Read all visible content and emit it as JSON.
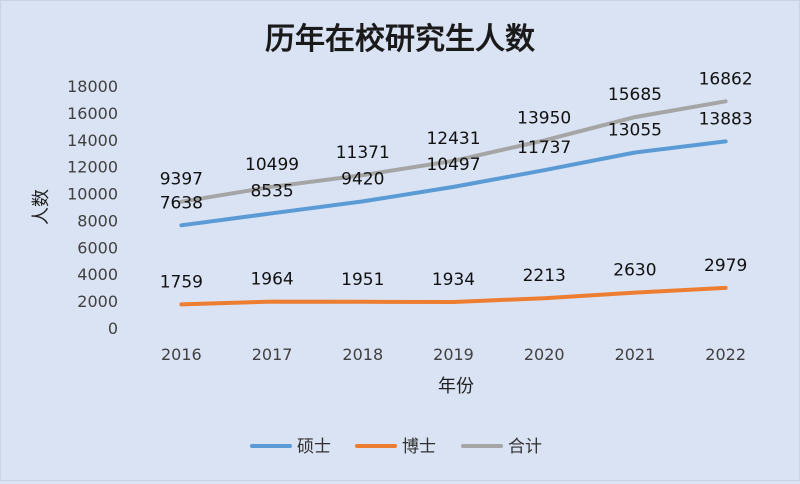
{
  "chart_data": {
    "type": "line",
    "title": "历年在校研究生人数",
    "xlabel": "年份",
    "ylabel": "人数",
    "categories": [
      "2016",
      "2017",
      "2018",
      "2019",
      "2020",
      "2021",
      "2022"
    ],
    "ylim": [
      0,
      18000
    ],
    "yticks": [
      0,
      2000,
      4000,
      6000,
      8000,
      10000,
      12000,
      14000,
      16000,
      18000
    ],
    "grid": false,
    "legend_position": "bottom",
    "series": [
      {
        "name": "硕士",
        "color": "#5b9bd5",
        "values": [
          7638,
          8535,
          9420,
          10497,
          11737,
          13055,
          13883
        ]
      },
      {
        "name": "博士",
        "color": "#ed7d31",
        "values": [
          1759,
          1964,
          1951,
          1934,
          2213,
          2630,
          2979
        ]
      },
      {
        "name": "合计",
        "color": "#a5a5a5",
        "values": [
          9397,
          10499,
          11371,
          12431,
          13950,
          15685,
          16862
        ]
      }
    ]
  }
}
